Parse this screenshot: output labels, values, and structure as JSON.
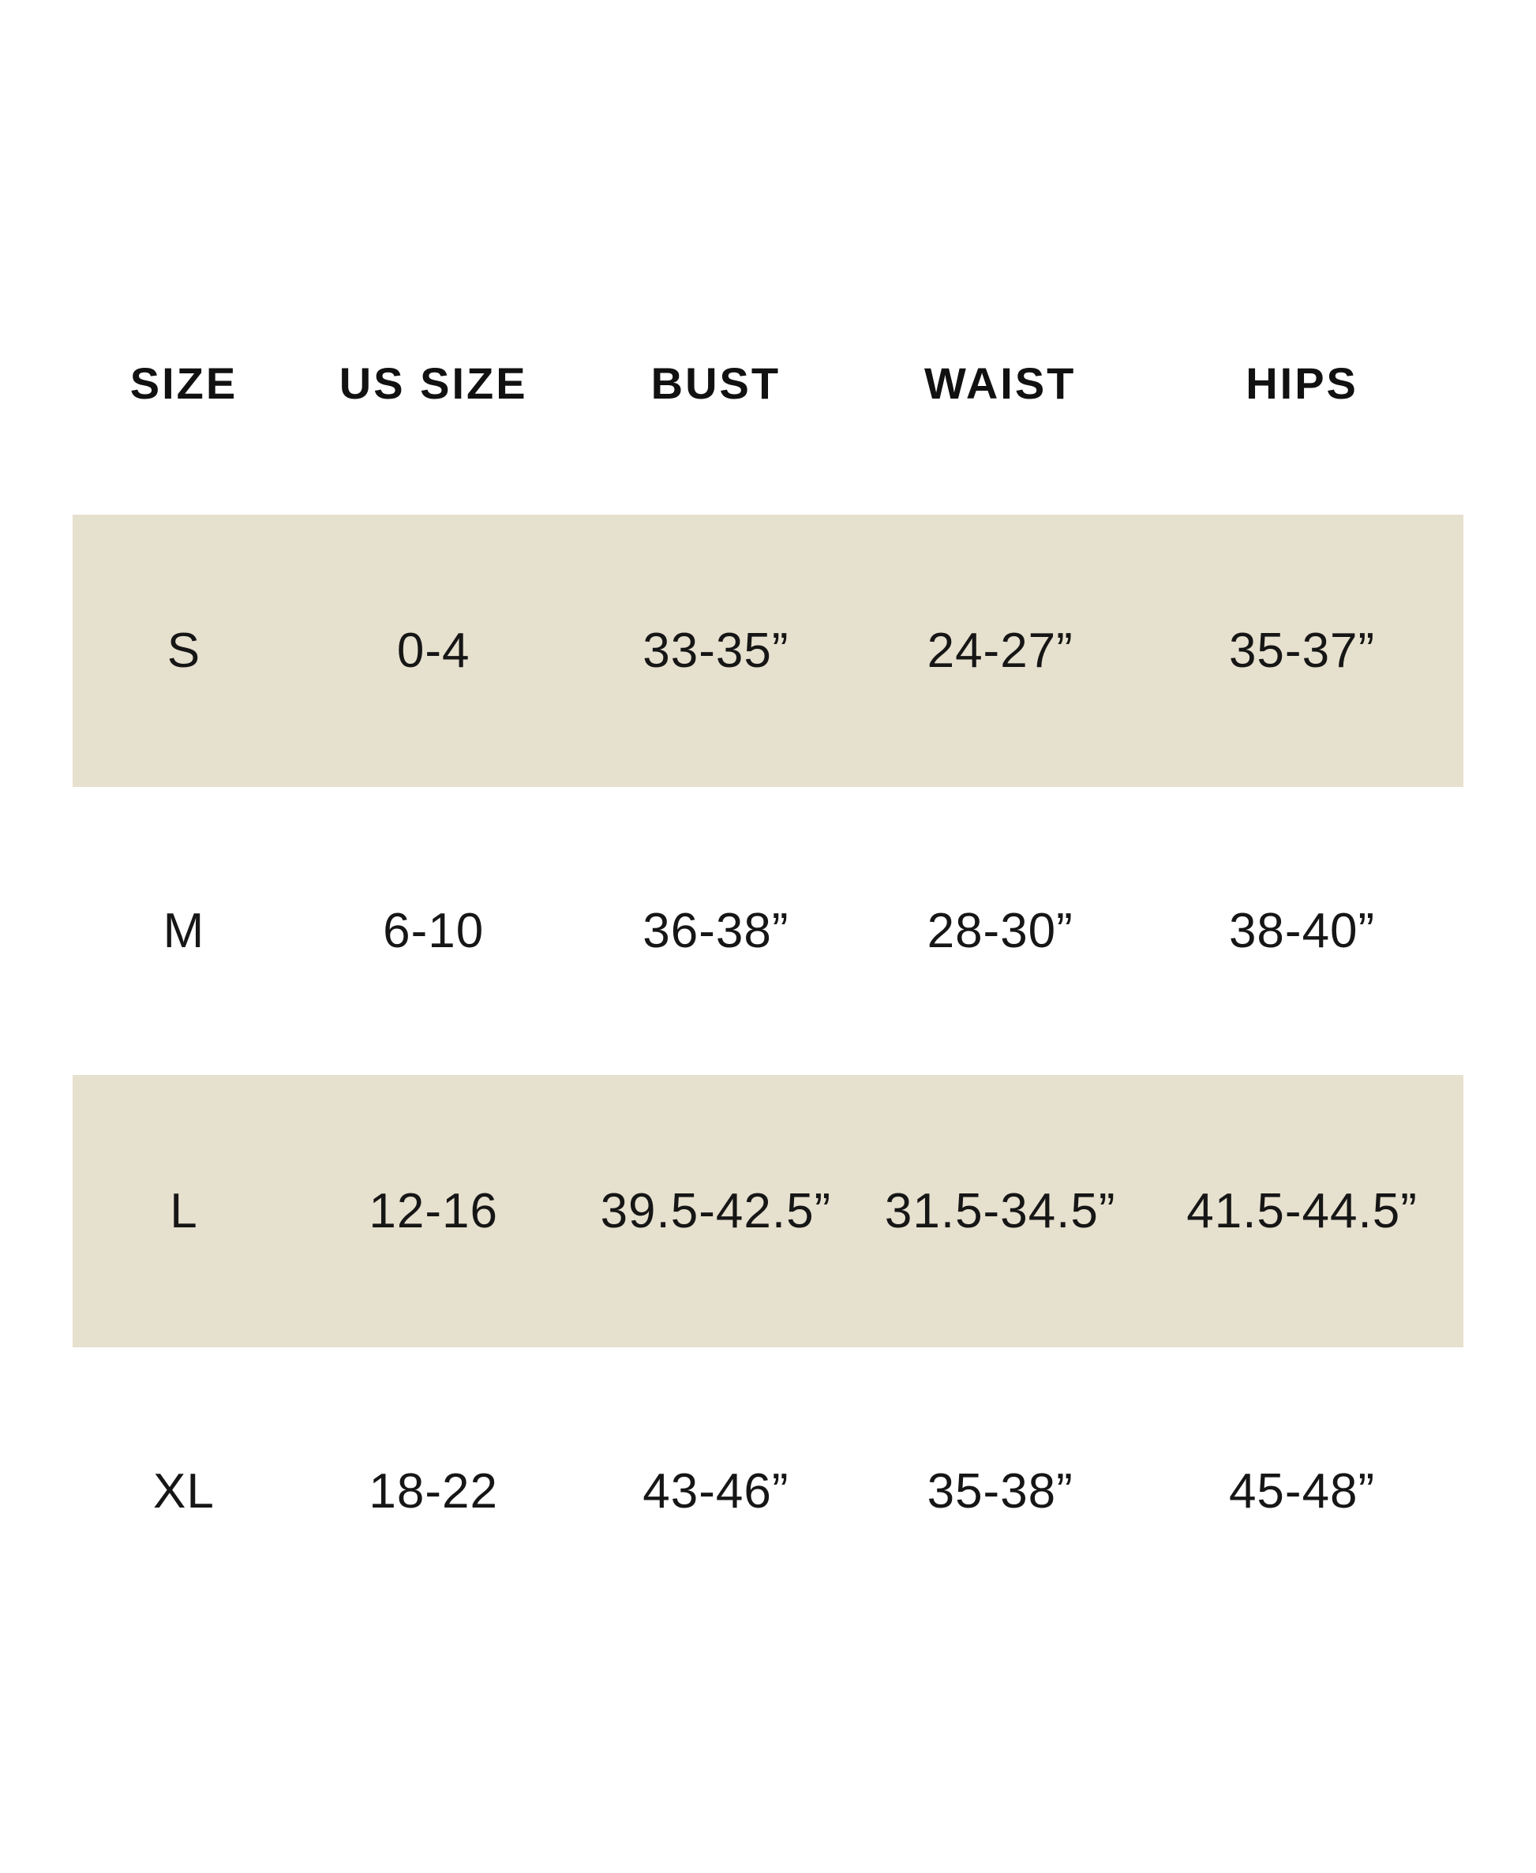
{
  "size_chart": {
    "columns": {
      "size": "SIZE",
      "us_size": "US SIZE",
      "bust": "BUST",
      "waist": "WAIST",
      "hips": "HIPS"
    },
    "rows": [
      {
        "size": "S",
        "us_size": "0-4",
        "bust": "33-35”",
        "waist": "24-27”",
        "hips": "35-37”",
        "highlighted": true
      },
      {
        "size": "M",
        "us_size": "6-10",
        "bust": "36-38”",
        "waist": "28-30”",
        "hips": "38-40”",
        "highlighted": false
      },
      {
        "size": "L",
        "us_size": "12-16",
        "bust": "39.5-42.5”",
        "waist": "31.5-34.5”",
        "hips": "41.5-44.5”",
        "highlighted": true
      },
      {
        "size": "XL",
        "us_size": "18-22",
        "bust": "43-46”",
        "waist": "35-38”",
        "hips": "45-48”",
        "highlighted": false
      }
    ],
    "colors": {
      "page_background": "#ffffff",
      "band_background": "#e6e0ce",
      "text": "#161616"
    }
  }
}
